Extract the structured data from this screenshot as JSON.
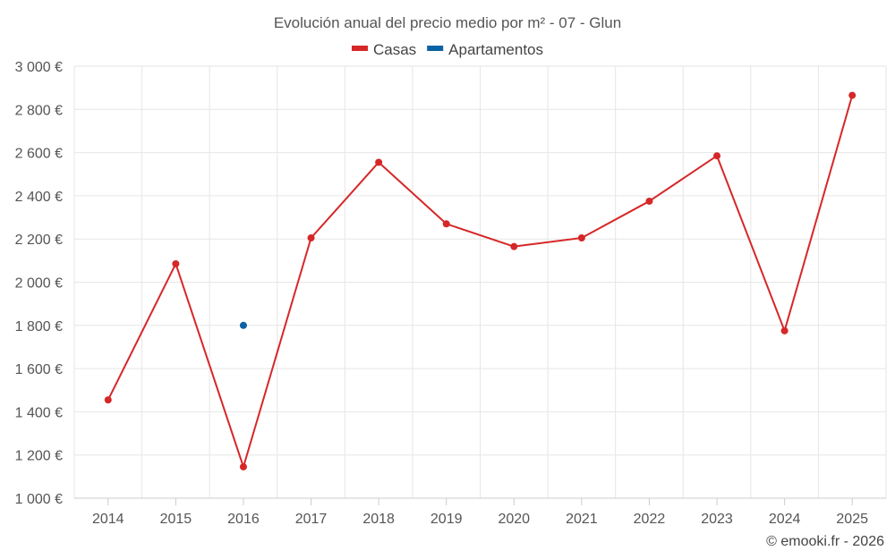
{
  "chart_data": {
    "type": "line",
    "title": "Evolución anual del precio medio por m² - 07 - Glun",
    "categories": [
      "2014",
      "2015",
      "2016",
      "2017",
      "2018",
      "2019",
      "2020",
      "2021",
      "2022",
      "2023",
      "2024",
      "2025"
    ],
    "series": [
      {
        "name": "Casas",
        "color": "#d62728",
        "values": [
          1455,
          2085,
          1145,
          2205,
          2555,
          2270,
          2165,
          2205,
          2375,
          2585,
          1775,
          2865
        ]
      },
      {
        "name": "Apartamentos",
        "color": "#0b62a4",
        "values": [
          null,
          null,
          1800,
          null,
          null,
          null,
          null,
          null,
          null,
          null,
          null,
          null
        ]
      }
    ],
    "ylim": [
      1000,
      3000
    ],
    "yticks": [
      1000,
      1200,
      1400,
      1600,
      1800,
      2000,
      2200,
      2400,
      2600,
      2800,
      3000
    ],
    "ytick_labels": [
      "1 000 €",
      "1 200 €",
      "1 400 €",
      "1 600 €",
      "1 800 €",
      "2 000 €",
      "2 200 €",
      "2 400 €",
      "2 600 €",
      "2 800 €",
      "3 000 €"
    ],
    "xlabel": "",
    "ylabel": "",
    "grid": true,
    "legend_position": "top-center"
  },
  "credit": "© emooki.fr - 2026"
}
